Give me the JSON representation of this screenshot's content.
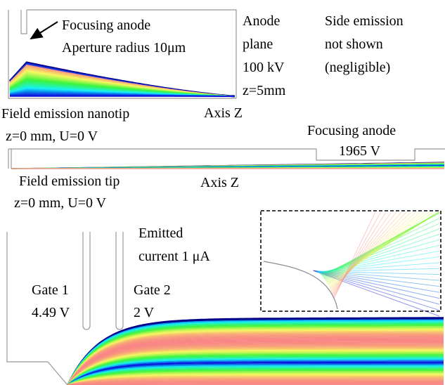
{
  "panel_top": {
    "aperture_label": "Focusing anode",
    "aperture_radius": "Aperture radius 10μm",
    "anode_lines": [
      "Anode",
      "plane",
      "100 kV",
      "z=5mm"
    ],
    "side_note": [
      "Side emission",
      "not shown",
      "(negligible)"
    ],
    "tip_label": "Field emission nanotip",
    "tip_coords": "z=0 mm, U=0 V",
    "axis_label": "Axis Z"
  },
  "panel_middle": {
    "anode_label": "Focusing anode",
    "anode_voltage": "1965 V",
    "tip_label": "Field emission tip",
    "tip_coords": "z=0 mm, U=0 V",
    "axis_label": "Axis Z"
  },
  "panel_bottom": {
    "current_lines": [
      "Emitted",
      "current 1 μA"
    ],
    "gate1": [
      "Gate 1",
      "4.49 V"
    ],
    "gate2": [
      "Gate 2",
      "2 V"
    ]
  }
}
